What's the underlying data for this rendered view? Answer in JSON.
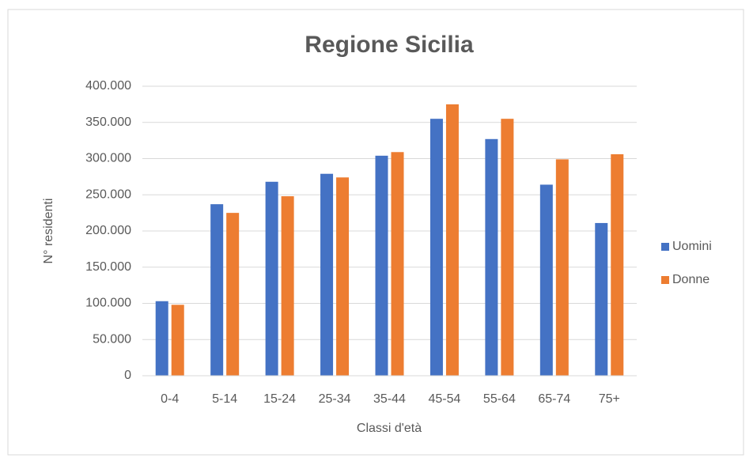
{
  "chart_data": {
    "type": "bar",
    "title": "Regione Sicilia",
    "xlabel": "Classi d'età",
    "ylabel": "N° residenti",
    "categories": [
      "0-4",
      "5-14",
      "15-24",
      "25-34",
      "35-44",
      "45-54",
      "55-64",
      "65-74",
      "75+"
    ],
    "series": [
      {
        "name": "Uomini",
        "color": "#4472c4",
        "values": [
          103000,
          237000,
          268000,
          279000,
          304000,
          355000,
          327000,
          264000,
          211000
        ]
      },
      {
        "name": "Donne",
        "color": "#ed7d31",
        "values": [
          98000,
          225000,
          248000,
          274000,
          309000,
          375000,
          355000,
          299000,
          306000
        ]
      }
    ],
    "ylim": [
      0,
      400000
    ],
    "yticks": [
      0,
      {
        "value": 50000,
        "label": "50.000"
      },
      {
        "value": 100000,
        "label": "100.000"
      },
      {
        "value": 150000,
        "label": "150.000"
      },
      {
        "value": 200000,
        "label": "200.000"
      },
      {
        "value": 250000,
        "label": "250.000"
      },
      {
        "value": 300000,
        "label": "300.000"
      },
      {
        "value": 350000,
        "label": "350.000"
      },
      {
        "value": 400000,
        "label": "400.000"
      }
    ],
    "grid": true,
    "legend": "right"
  }
}
